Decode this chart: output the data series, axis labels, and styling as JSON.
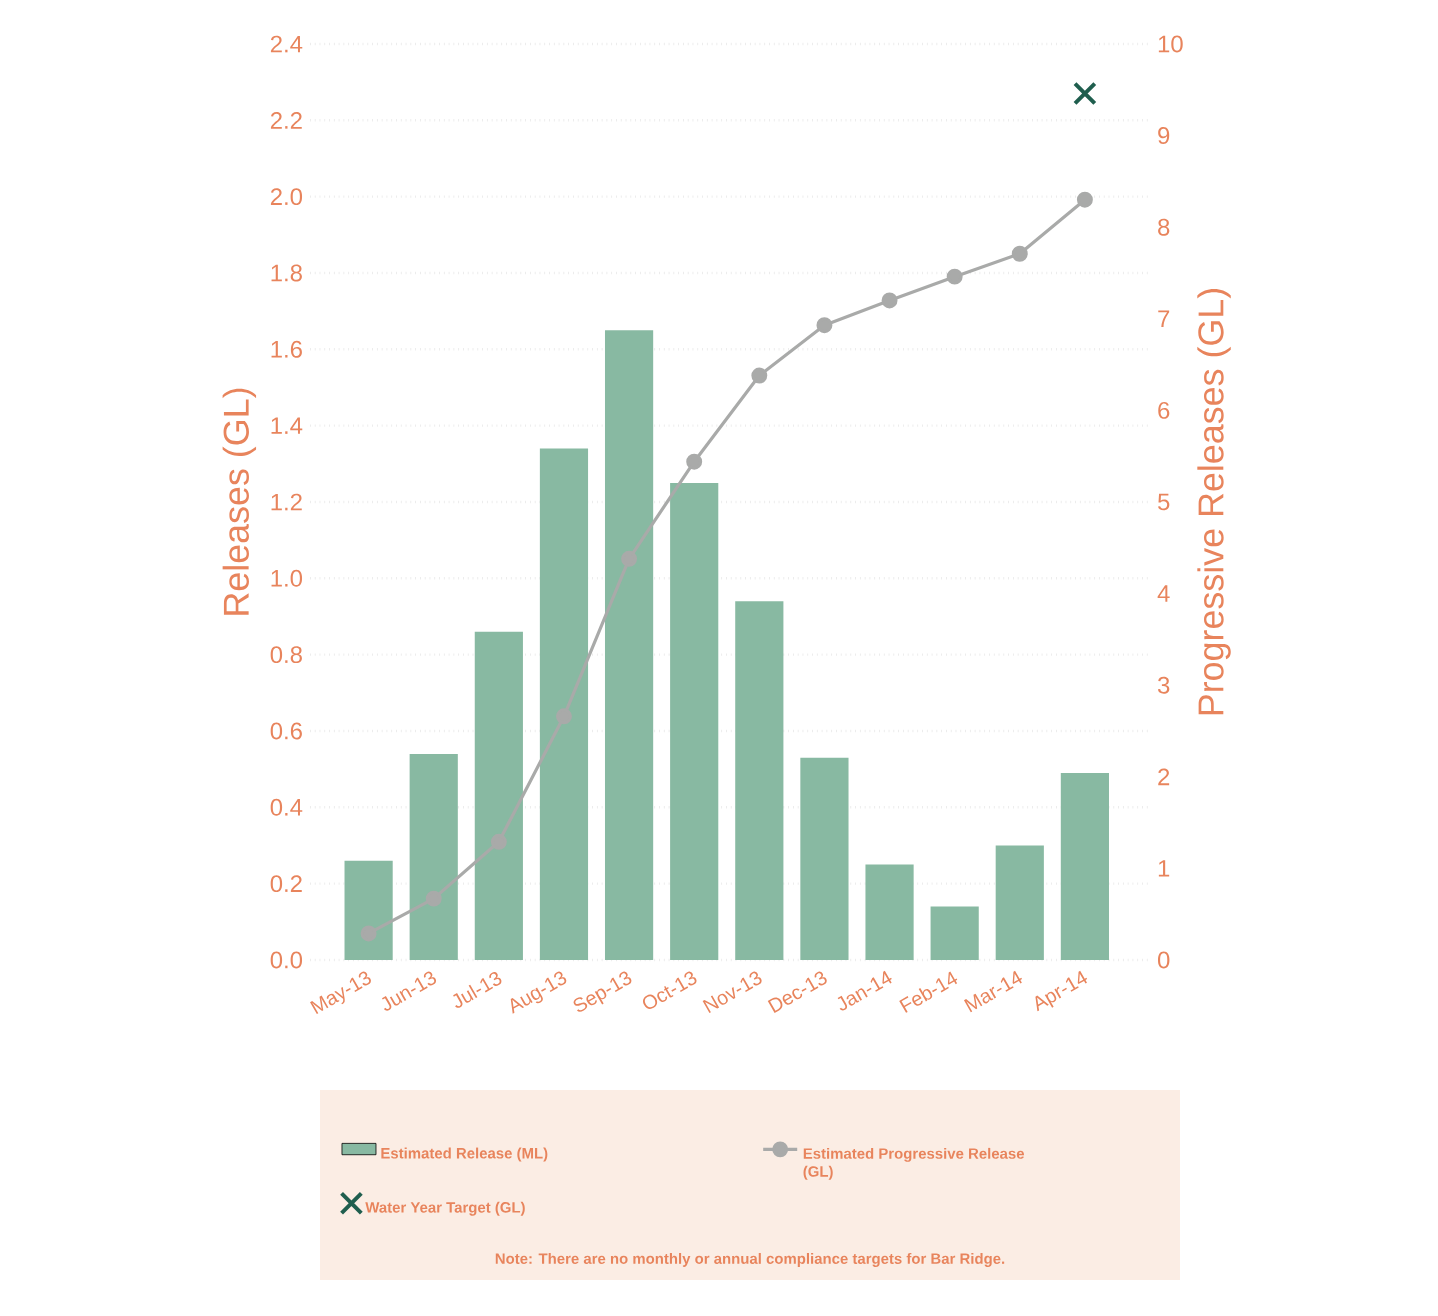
{
  "chart_data": {
    "type": "bar",
    "categories": [
      "May-13",
      "Jun-13",
      "Jul-13",
      "Aug-13",
      "Sep-13",
      "Oct-13",
      "Nov-13",
      "Dec-13",
      "Jan-14",
      "Feb-14",
      "Mar-14",
      "Apr-14"
    ],
    "ylabel": "Releases (GL)",
    "y2label": "Progressive Releases (GL)",
    "series": [
      {
        "name": "Estimated Release (ML)",
        "color": "#88b9a2",
        "values": [
          0.26,
          0.54,
          0.86,
          1.34,
          1.65,
          1.25,
          0.94,
          0.53,
          0.25,
          0.14,
          0.3,
          0.49
        ]
      },
      {
        "name": "Estimated Progressive Release (GL)",
        "type": "line",
        "axis": "y2",
        "marker": "circle",
        "color": "#a9aaa9",
        "values": [
          0.29,
          0.67,
          1.29,
          2.66,
          4.38,
          5.44,
          6.38,
          6.93,
          7.2,
          7.46,
          7.71,
          8.3
        ]
      },
      {
        "name": "Water Year Target (GL)",
        "type": "scatter",
        "axis": "y2",
        "marker": "cross",
        "color": "#1f5e4e",
        "values": [
          null,
          null,
          null,
          null,
          null,
          null,
          null,
          null,
          null,
          null,
          null,
          9.46
        ]
      }
    ],
    "ylim": [
      0,
      2.4
    ],
    "yticks": [
      {
        "value": 0,
        "label": "0.0"
      },
      {
        "value": 0.2,
        "label": "0.2"
      },
      {
        "value": 0.4,
        "label": "0.4"
      },
      {
        "value": 0.6,
        "label": "0.6"
      },
      {
        "value": 0.8,
        "label": "0.8"
      },
      {
        "value": 1.0,
        "label": "1.0"
      },
      {
        "value": 1.2,
        "label": "1.2"
      },
      {
        "value": 1.4,
        "label": "1.4"
      },
      {
        "value": 1.6,
        "label": "1.6"
      },
      {
        "value": 1.8,
        "label": "1.8"
      },
      {
        "value": 2.0,
        "label": "2.0"
      },
      {
        "value": 2.2,
        "label": "2.2"
      },
      {
        "value": 2.4,
        "label": "2.4"
      }
    ],
    "y2lim": [
      0,
      10
    ],
    "y2ticks": [
      0,
      1,
      2,
      3,
      4,
      5,
      6,
      7,
      8,
      9,
      10
    ],
    "grid": "y",
    "legend": "bottom",
    "annotations": [
      "Note: There are no monthly or annual compliance targets for Bar Ridge."
    ]
  }
}
